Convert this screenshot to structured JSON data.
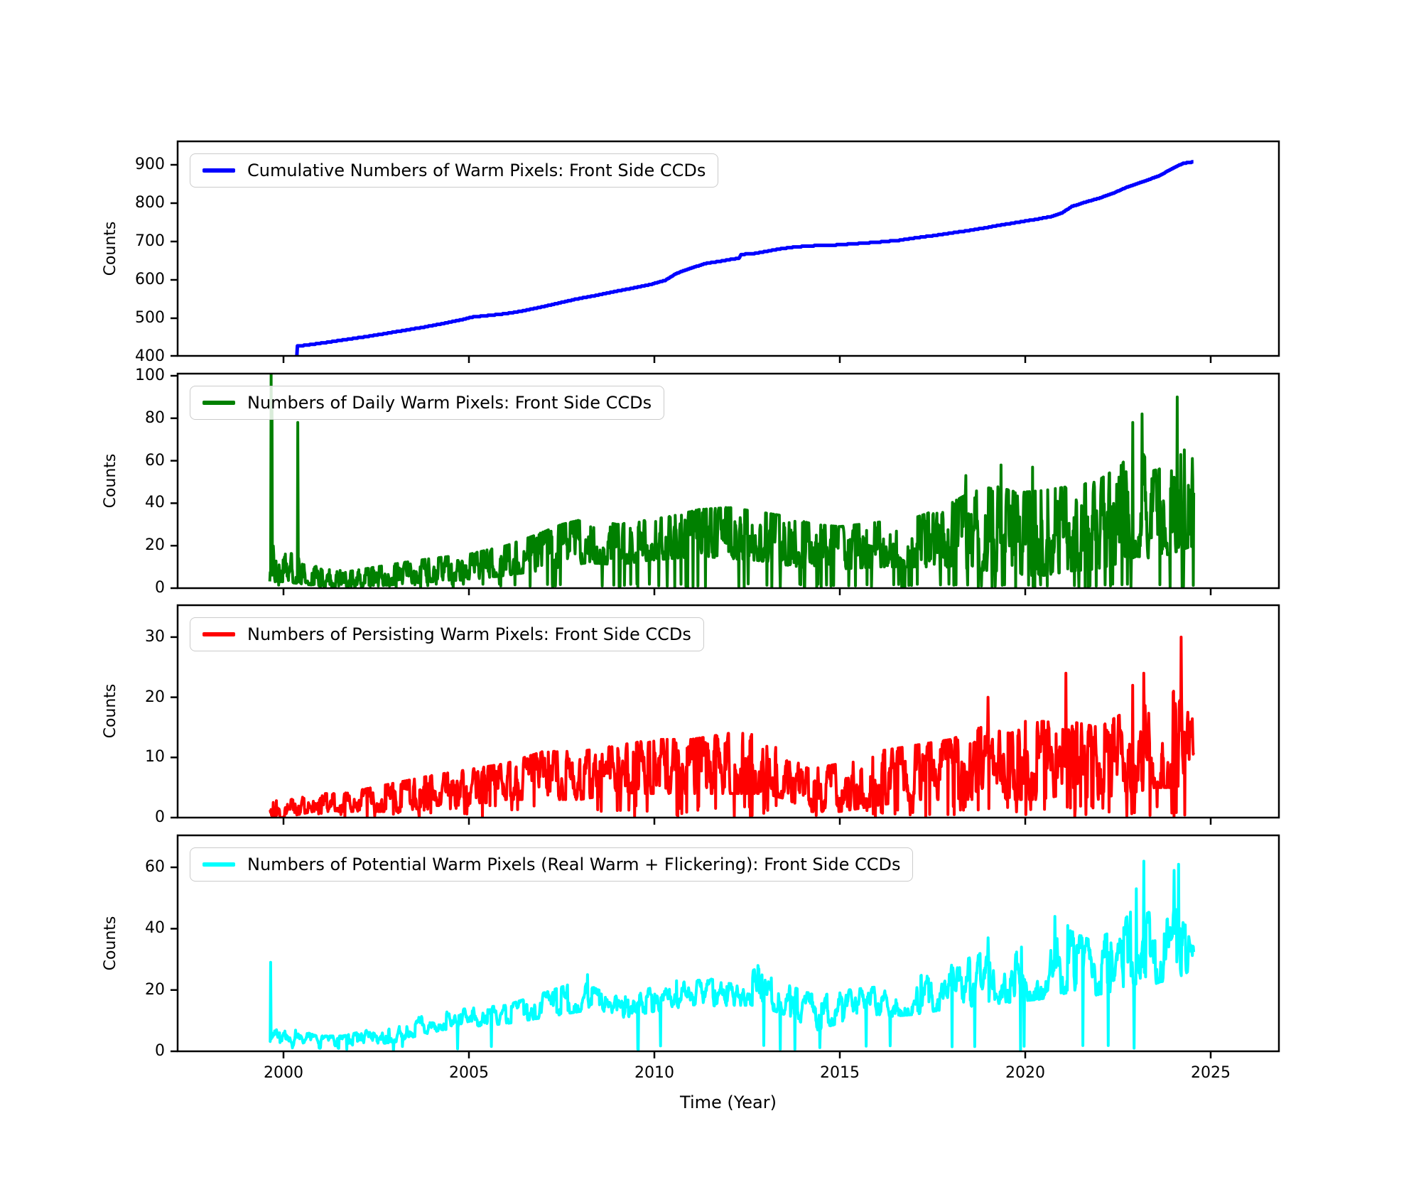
{
  "chart_data": {
    "type": "line",
    "x": {
      "label": "Time (Year)",
      "ticks": [
        "2000",
        "2005",
        "2010",
        "2015",
        "2020",
        "2025"
      ],
      "tick_years": [
        2000,
        2005,
        2010,
        2015,
        2020,
        2025
      ],
      "xlim": [
        1997.15,
        2026.84
      ]
    },
    "panels": [
      {
        "legend": "Cumulative Numbers of Warm Pixels: Front Side CCDs",
        "color": "#0000FF",
        "ylabel": "Counts",
        "yticks": [
          400,
          500,
          600,
          700,
          800,
          900
        ],
        "ylim": [
          400,
          960
        ],
        "kind": "cumulative",
        "points": [
          [
            2000.355,
            392
          ],
          [
            2000.37,
            428
          ],
          [
            2000.8,
            433
          ],
          [
            2001.3,
            440
          ],
          [
            2001.8,
            447
          ],
          [
            2002.3,
            454
          ],
          [
            2002.8,
            462
          ],
          [
            2003.3,
            470
          ],
          [
            2003.8,
            478
          ],
          [
            2004.3,
            487
          ],
          [
            2004.8,
            497
          ],
          [
            2005.1,
            504
          ],
          [
            2005.5,
            508
          ],
          [
            2006.0,
            513
          ],
          [
            2006.4,
            519
          ],
          [
            2006.9,
            529
          ],
          [
            2007.4,
            540
          ],
          [
            2007.9,
            551
          ],
          [
            2008.4,
            560
          ],
          [
            2008.9,
            570
          ],
          [
            2009.4,
            579
          ],
          [
            2009.9,
            589
          ],
          [
            2010.3,
            600
          ],
          [
            2010.6,
            618
          ],
          [
            2011.0,
            632
          ],
          [
            2011.4,
            644
          ],
          [
            2011.8,
            650
          ],
          [
            2012.1,
            655
          ],
          [
            2012.28,
            657
          ],
          [
            2012.33,
            667
          ],
          [
            2012.7,
            670
          ],
          [
            2013.0,
            675
          ],
          [
            2013.4,
            682
          ],
          [
            2013.8,
            687
          ],
          [
            2014.3,
            690
          ],
          [
            2014.9,
            692
          ],
          [
            2015.5,
            696
          ],
          [
            2016.1,
            700
          ],
          [
            2016.6,
            704
          ],
          [
            2017.0,
            710
          ],
          [
            2017.5,
            716
          ],
          [
            2018.0,
            723
          ],
          [
            2018.5,
            730
          ],
          [
            2019.0,
            738
          ],
          [
            2019.4,
            745
          ],
          [
            2019.8,
            751
          ],
          [
            2020.3,
            759
          ],
          [
            2020.7,
            766
          ],
          [
            2021.0,
            776
          ],
          [
            2021.25,
            792
          ],
          [
            2021.6,
            803
          ],
          [
            2022.0,
            814
          ],
          [
            2022.4,
            828
          ],
          [
            2022.75,
            843
          ],
          [
            2023.05,
            853
          ],
          [
            2023.35,
            863
          ],
          [
            2023.65,
            874
          ],
          [
            2023.9,
            888
          ],
          [
            2024.1,
            898
          ],
          [
            2024.25,
            904
          ],
          [
            2024.4,
            907
          ],
          [
            2024.55,
            909
          ]
        ]
      },
      {
        "legend": "Numbers of Daily Warm Pixels: Front Side CCDs",
        "color": "#008000",
        "ylabel": "Counts",
        "yticks": [
          0,
          20,
          40,
          60,
          80,
          100
        ],
        "ylim": [
          0,
          101
        ],
        "kind": "noisy",
        "data_start": 1999.63,
        "data_end": 2024.55,
        "seed": 11,
        "dip_prob": 0.06,
        "walk_step": 0.95,
        "skew": 1.3,
        "envelope": [
          [
            1999.63,
            1,
            6
          ],
          [
            1999.7,
            3,
            22
          ],
          [
            2000.0,
            3,
            18
          ],
          [
            2000.5,
            2,
            14
          ],
          [
            2001.0,
            1,
            9
          ],
          [
            2001.8,
            0,
            8
          ],
          [
            2002.5,
            1,
            10
          ],
          [
            2003.2,
            2,
            12
          ],
          [
            2004.0,
            3,
            14
          ],
          [
            2005.0,
            4,
            16
          ],
          [
            2006.0,
            6,
            20
          ],
          [
            2006.8,
            8,
            25
          ],
          [
            2007.5,
            10,
            30
          ],
          [
            2008.2,
            12,
            33
          ],
          [
            2009.0,
            11,
            30
          ],
          [
            2009.8,
            13,
            32
          ],
          [
            2010.5,
            14,
            34
          ],
          [
            2011.2,
            15,
            37
          ],
          [
            2012.0,
            14,
            38
          ],
          [
            2012.8,
            13,
            36
          ],
          [
            2013.5,
            11,
            34
          ],
          [
            2014.3,
            9,
            30
          ],
          [
            2015.0,
            9,
            29
          ],
          [
            2016.0,
            10,
            31
          ],
          [
            2017.0,
            10,
            33
          ],
          [
            2017.8,
            10,
            38
          ],
          [
            2018.5,
            9,
            45
          ],
          [
            2019.2,
            8,
            48
          ],
          [
            2019.8,
            6,
            45
          ],
          [
            2020.5,
            6,
            46
          ],
          [
            2021.2,
            8,
            48
          ],
          [
            2021.9,
            9,
            50
          ],
          [
            2022.6,
            12,
            58
          ],
          [
            2023.0,
            15,
            70
          ],
          [
            2023.4,
            14,
            55
          ],
          [
            2023.9,
            16,
            58
          ],
          [
            2024.2,
            18,
            68
          ],
          [
            2024.55,
            20,
            67
          ]
        ],
        "spikes": [
          [
            1999.665,
            101
          ],
          [
            1999.69,
            88
          ],
          [
            2000.385,
            78
          ],
          [
            2018.4,
            53
          ],
          [
            2019.35,
            58
          ],
          [
            2020.2,
            57
          ],
          [
            2022.9,
            78
          ],
          [
            2023.15,
            82
          ],
          [
            2024.1,
            90
          ]
        ]
      },
      {
        "legend": "Numbers of Persisting Warm Pixels: Front Side CCDs",
        "color": "#FF0000",
        "ylabel": "Counts",
        "yticks": [
          0,
          10,
          20,
          30
        ],
        "ylim": [
          0,
          35.3
        ],
        "kind": "noisy",
        "data_start": 1999.64,
        "data_end": 2024.55,
        "seed": 22,
        "dip_prob": 0.05,
        "walk_step": 0.7,
        "skew": 1.0,
        "envelope": [
          [
            1999.64,
            0,
            4
          ],
          [
            2000.0,
            0,
            3
          ],
          [
            2000.8,
            1,
            4
          ],
          [
            2001.6,
            1,
            4
          ],
          [
            2002.4,
            1,
            5
          ],
          [
            2003.2,
            1,
            6
          ],
          [
            2004.0,
            2,
            7
          ],
          [
            2005.0,
            2,
            8
          ],
          [
            2006.0,
            3,
            9
          ],
          [
            2007.0,
            3,
            11
          ],
          [
            2008.0,
            3,
            11
          ],
          [
            2009.0,
            4,
            12
          ],
          [
            2010.0,
            4,
            13
          ],
          [
            2011.0,
            4,
            13
          ],
          [
            2012.0,
            4,
            14
          ],
          [
            2013.0,
            4,
            14
          ],
          [
            2013.6,
            3,
            10
          ],
          [
            2014.2,
            1,
            8
          ],
          [
            2015.0,
            1,
            9
          ],
          [
            2016.0,
            2,
            11
          ],
          [
            2017.0,
            3,
            12
          ],
          [
            2018.0,
            3,
            13
          ],
          [
            2018.8,
            3,
            15
          ],
          [
            2019.6,
            3,
            14
          ],
          [
            2020.4,
            3,
            16
          ],
          [
            2021.2,
            4,
            16
          ],
          [
            2022.0,
            3,
            15
          ],
          [
            2022.8,
            4,
            18
          ],
          [
            2023.5,
            5,
            19
          ],
          [
            2024.0,
            5,
            21
          ],
          [
            2024.55,
            6,
            16
          ]
        ],
        "spikes": [
          [
            2019.0,
            20
          ],
          [
            2020.0,
            16
          ],
          [
            2021.1,
            24
          ],
          [
            2022.9,
            22
          ],
          [
            2023.2,
            24
          ],
          [
            2024.2,
            30
          ]
        ]
      },
      {
        "legend": "Numbers of Potential Warm Pixels (Real Warm + Flickering): Front Side CCDs",
        "color": "#00FFFF",
        "ylabel": "Counts",
        "yticks": [
          0,
          20,
          40,
          60
        ],
        "ylim": [
          0,
          70.4
        ],
        "kind": "noisy",
        "data_start": 1999.63,
        "data_end": 2024.55,
        "seed": 33,
        "dip_prob": 0.012,
        "walk_step": 0.45,
        "skew": 1.05,
        "envelope": [
          [
            1999.63,
            1,
            5
          ],
          [
            1999.7,
            3,
            9
          ],
          [
            2000.2,
            2,
            8
          ],
          [
            2000.9,
            1,
            5
          ],
          [
            2001.6,
            1,
            5
          ],
          [
            2002.3,
            2,
            7
          ],
          [
            2003.0,
            3,
            8
          ],
          [
            2003.6,
            5,
            11
          ],
          [
            2004.3,
            7,
            13
          ],
          [
            2005.0,
            8,
            14
          ],
          [
            2006.0,
            9,
            15
          ],
          [
            2007.0,
            11,
            19
          ],
          [
            2008.0,
            13,
            23
          ],
          [
            2008.5,
            12,
            20
          ],
          [
            2009.2,
            11,
            18
          ],
          [
            2010.0,
            13,
            21
          ],
          [
            2011.0,
            14,
            23
          ],
          [
            2012.0,
            15,
            24
          ],
          [
            2012.8,
            15,
            27
          ],
          [
            2013.5,
            12,
            22
          ],
          [
            2014.4,
            7,
            18
          ],
          [
            2015.2,
            10,
            20
          ],
          [
            2016.0,
            11,
            21
          ],
          [
            2017.0,
            12,
            24
          ],
          [
            2018.0,
            14,
            28
          ],
          [
            2018.8,
            15,
            32
          ],
          [
            2019.6,
            16,
            32
          ],
          [
            2020.4,
            17,
            35
          ],
          [
            2021.1,
            19,
            40
          ],
          [
            2021.8,
            18,
            36
          ],
          [
            2022.5,
            20,
            40
          ],
          [
            2023.0,
            22,
            48
          ],
          [
            2023.5,
            22,
            44
          ],
          [
            2024.0,
            24,
            52
          ],
          [
            2024.3,
            25,
            48
          ],
          [
            2024.55,
            28,
            42
          ]
        ],
        "spikes": [
          [
            1999.66,
            29
          ],
          [
            2008.2,
            25
          ],
          [
            2010.6,
            23
          ],
          [
            2012.8,
            28
          ],
          [
            2019.0,
            37
          ],
          [
            2019.9,
            34
          ],
          [
            2020.8,
            44
          ],
          [
            2021.15,
            41
          ],
          [
            2023.0,
            53
          ],
          [
            2023.2,
            62
          ],
          [
            2024.02,
            59
          ],
          [
            2024.13,
            61
          ]
        ]
      }
    ]
  }
}
